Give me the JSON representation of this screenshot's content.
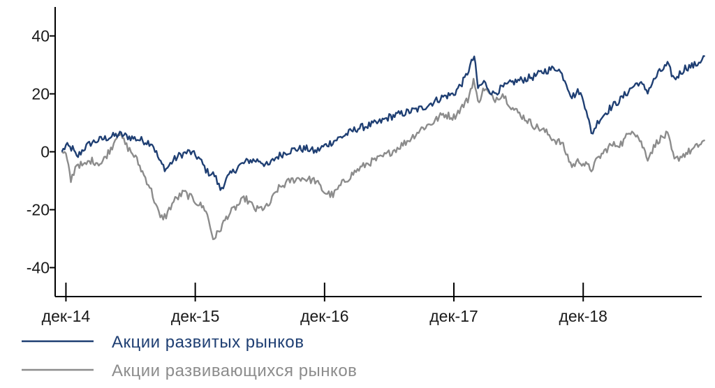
{
  "chart_data": {
    "type": "line",
    "title": "",
    "xlabel": "",
    "ylabel": "",
    "x_tick_labels": [
      "дек-14",
      "дек-15",
      "дек-16",
      "дек-17",
      "дек-18"
    ],
    "y_ticks": [
      -40,
      -20,
      0,
      20,
      40
    ],
    "y_tick_labels": [
      "-40",
      "-20",
      "0",
      "20",
      "40"
    ],
    "ylim": [
      -50,
      50
    ],
    "grid": false,
    "legend_position": "bottom-left",
    "x_range": [
      "2014-11",
      "2019-11"
    ],
    "series": [
      {
        "name": "Акции развитых рынков",
        "color": "#1f3f73",
        "points": [
          [
            "2014-11-20",
            0
          ],
          [
            "2014-12-01",
            2
          ],
          [
            "2014-12-20",
            1
          ],
          [
            "2015-01-01",
            -2
          ],
          [
            "2015-01-20",
            1
          ],
          [
            "2015-02-10",
            3
          ],
          [
            "2015-03-01",
            4
          ],
          [
            "2015-04-01",
            5
          ],
          [
            "2015-05-01",
            6
          ],
          [
            "2015-06-01",
            5
          ],
          [
            "2015-07-01",
            4
          ],
          [
            "2015-08-01",
            3
          ],
          [
            "2015-08-25",
            -4
          ],
          [
            "2015-09-10",
            -6
          ],
          [
            "2015-09-30",
            -3
          ],
          [
            "2015-10-20",
            -1
          ],
          [
            "2015-11-15",
            0
          ],
          [
            "2015-12-10",
            -2
          ],
          [
            "2016-01-05",
            -7
          ],
          [
            "2016-01-25",
            -8
          ],
          [
            "2016-02-11",
            -13
          ],
          [
            "2016-03-01",
            -9
          ],
          [
            "2016-04-01",
            -5
          ],
          [
            "2016-05-01",
            -3
          ],
          [
            "2016-06-01",
            -3
          ],
          [
            "2016-06-24",
            -5
          ],
          [
            "2016-07-15",
            -2
          ],
          [
            "2016-08-15",
            0
          ],
          [
            "2016-09-15",
            1
          ],
          [
            "2016-10-15",
            1
          ],
          [
            "2016-11-05",
            0
          ],
          [
            "2016-12-01",
            2
          ],
          [
            "2017-01-01",
            4
          ],
          [
            "2017-02-01",
            6
          ],
          [
            "2017-03-01",
            8
          ],
          [
            "2017-04-01",
            9
          ],
          [
            "2017-05-01",
            10
          ],
          [
            "2017-06-01",
            12
          ],
          [
            "2017-07-01",
            13
          ],
          [
            "2017-08-01",
            14
          ],
          [
            "2017-09-01",
            15
          ],
          [
            "2017-10-01",
            17
          ],
          [
            "2017-11-01",
            19
          ],
          [
            "2017-12-01",
            20
          ],
          [
            "2018-01-01",
            25
          ],
          [
            "2018-01-28",
            33
          ],
          [
            "2018-02-08",
            22
          ],
          [
            "2018-02-25",
            24
          ],
          [
            "2018-03-20",
            20
          ],
          [
            "2018-04-15",
            22
          ],
          [
            "2018-05-15",
            24
          ],
          [
            "2018-06-15",
            25
          ],
          [
            "2018-07-15",
            26
          ],
          [
            "2018-08-15",
            28
          ],
          [
            "2018-09-20",
            29
          ],
          [
            "2018-10-10",
            25
          ],
          [
            "2018-10-30",
            19
          ],
          [
            "2018-11-20",
            21
          ],
          [
            "2018-12-10",
            15
          ],
          [
            "2018-12-24",
            6
          ],
          [
            "2019-01-15",
            11
          ],
          [
            "2019-02-15",
            15
          ],
          [
            "2019-03-15",
            18
          ],
          [
            "2019-04-15",
            22
          ],
          [
            "2019-05-05",
            24
          ],
          [
            "2019-05-31",
            21
          ],
          [
            "2019-06-30",
            27
          ],
          [
            "2019-07-26",
            30
          ],
          [
            "2019-08-15",
            25
          ],
          [
            "2019-09-15",
            29
          ],
          [
            "2019-10-15",
            30
          ],
          [
            "2019-11-10",
            33
          ]
        ]
      },
      {
        "name": "Акции развивающихся рынков",
        "color": "#8c8c8c",
        "points": [
          [
            "2014-11-20",
            0
          ],
          [
            "2014-12-01",
            -1
          ],
          [
            "2014-12-15",
            -10
          ],
          [
            "2015-01-01",
            -4
          ],
          [
            "2015-01-20",
            -5
          ],
          [
            "2015-02-10",
            -3
          ],
          [
            "2015-03-10",
            -4
          ],
          [
            "2015-04-10",
            2
          ],
          [
            "2015-04-27",
            7
          ],
          [
            "2015-05-20",
            2
          ],
          [
            "2015-06-15",
            -2
          ],
          [
            "2015-07-08",
            -8
          ],
          [
            "2015-07-25",
            -12
          ],
          [
            "2015-08-24",
            -23
          ],
          [
            "2015-09-10",
            -22
          ],
          [
            "2015-10-01",
            -17
          ],
          [
            "2015-10-30",
            -14
          ],
          [
            "2015-12-01",
            -17
          ],
          [
            "2015-12-31",
            -20
          ],
          [
            "2016-01-21",
            -30
          ],
          [
            "2016-02-05",
            -28
          ],
          [
            "2016-03-01",
            -22
          ],
          [
            "2016-04-20",
            -16
          ],
          [
            "2016-05-20",
            -20
          ],
          [
            "2016-06-24",
            -19
          ],
          [
            "2016-07-20",
            -13
          ],
          [
            "2016-08-25",
            -10
          ],
          [
            "2016-09-25",
            -9
          ],
          [
            "2016-11-05",
            -10
          ],
          [
            "2016-12-01",
            -14
          ],
          [
            "2016-12-25",
            -15
          ],
          [
            "2017-01-20",
            -11
          ],
          [
            "2017-02-25",
            -7
          ],
          [
            "2017-04-01",
            -4
          ],
          [
            "2017-05-10",
            -2
          ],
          [
            "2017-06-20",
            1
          ],
          [
            "2017-07-25",
            4
          ],
          [
            "2017-09-01",
            8
          ],
          [
            "2017-10-01",
            10
          ],
          [
            "2017-11-01",
            13
          ],
          [
            "2017-12-01",
            12
          ],
          [
            "2018-01-10",
            18
          ],
          [
            "2018-01-26",
            25
          ],
          [
            "2018-02-08",
            17
          ],
          [
            "2018-02-26",
            22
          ],
          [
            "2018-03-22",
            18
          ],
          [
            "2018-04-17",
            20
          ],
          [
            "2018-05-15",
            15
          ],
          [
            "2018-06-15",
            12
          ],
          [
            "2018-07-15",
            9
          ],
          [
            "2018-08-15",
            7
          ],
          [
            "2018-09-12",
            4
          ],
          [
            "2018-10-01",
            3
          ],
          [
            "2018-10-30",
            -5
          ],
          [
            "2018-11-20",
            -3
          ],
          [
            "2018-12-24",
            -6
          ],
          [
            "2019-01-15",
            -2
          ],
          [
            "2019-02-15",
            2
          ],
          [
            "2019-03-20",
            3
          ],
          [
            "2019-04-17",
            8
          ],
          [
            "2019-05-05",
            5
          ],
          [
            "2019-05-31",
            -2
          ],
          [
            "2019-06-30",
            4
          ],
          [
            "2019-07-26",
            6
          ],
          [
            "2019-08-15",
            -3
          ],
          [
            "2019-09-10",
            -1
          ],
          [
            "2019-10-10",
            1
          ],
          [
            "2019-11-10",
            4
          ]
        ]
      }
    ]
  }
}
